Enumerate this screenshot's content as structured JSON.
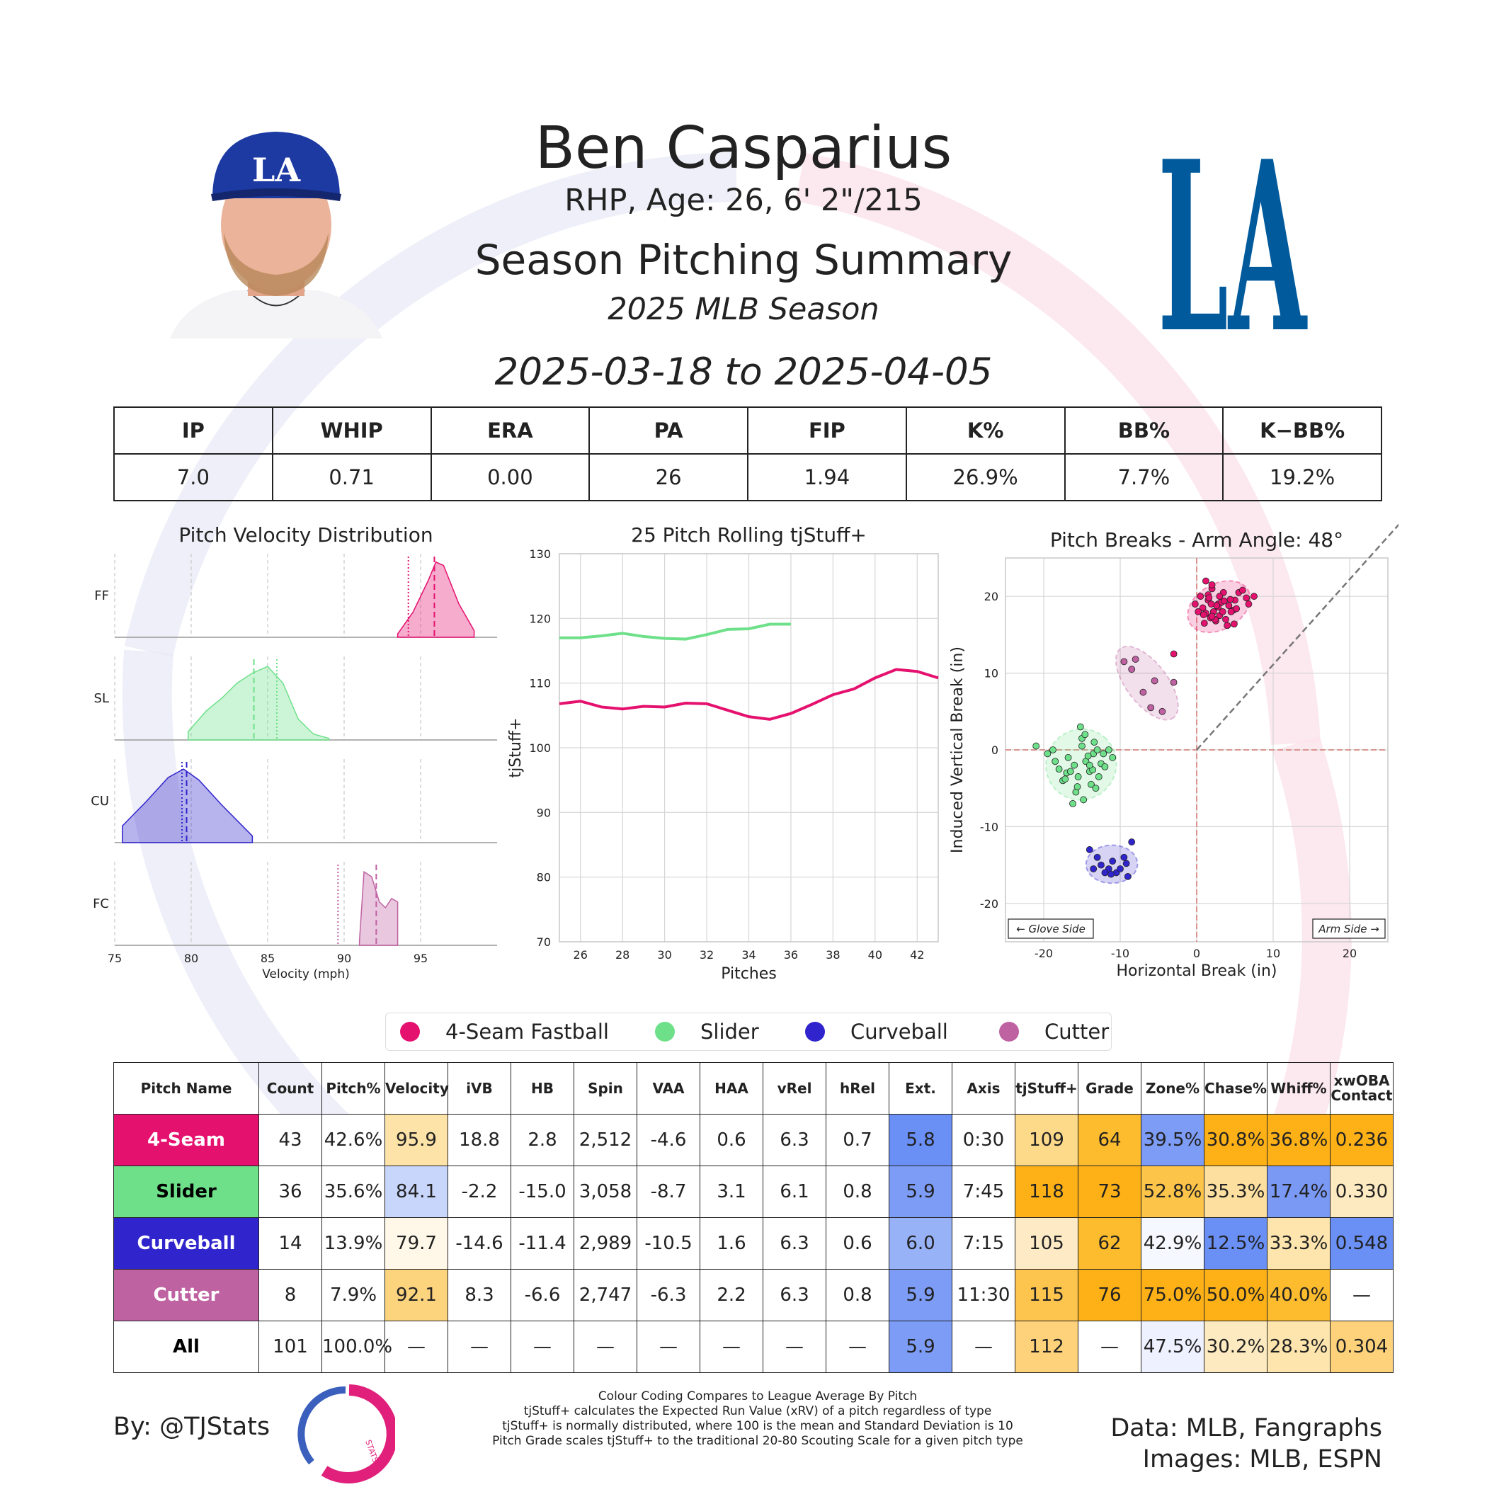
{
  "header": {
    "player_name": "Ben Casparius",
    "bio": "RHP, Age: 26, 6' 2\"/215",
    "summary_title": "Season Pitching Summary",
    "season": "2025 MLB Season",
    "date_range": "2025-03-18 to 2025-04-05",
    "team_logo_text": "LA",
    "headshot_icon": "player-headshot",
    "team_colors": {
      "primary": "#005A9C",
      "cap_logo": "#ffffff"
    }
  },
  "stats": {
    "headers": [
      "IP",
      "WHIP",
      "ERA",
      "PA",
      "FIP",
      "K%",
      "BB%",
      "K−BB%"
    ],
    "values": [
      "7.0",
      "0.71",
      "0.00",
      "26",
      "1.94",
      "26.9%",
      "7.7%",
      "19.2%"
    ]
  },
  "pitch_colors": {
    "FF": "#e5116f",
    "SL": "#6ee08a",
    "CU": "#3025cc",
    "FC": "#bf62a2"
  },
  "chart_data": [
    {
      "type": "area",
      "title": "Pitch Velocity Distribution",
      "xlabel": "Velocity (mph)",
      "ylabel": "",
      "xlim": [
        75,
        100
      ],
      "xticks": [
        75,
        80,
        85,
        90,
        95
      ],
      "series": [
        {
          "name": "FF",
          "x": [
            93.5,
            94.5,
            95.5,
            96.0,
            96.5,
            97.5,
            98.5
          ],
          "density": [
            0.04,
            0.3,
            0.68,
            0.9,
            0.86,
            0.4,
            0.08
          ],
          "mean": 95.9,
          "league_mean": 94.2
        },
        {
          "name": "SL",
          "x": [
            79.8,
            81.0,
            82.0,
            83.0,
            84.0,
            85.0,
            86.0,
            87.0,
            88.0,
            89.0
          ],
          "density": [
            0.1,
            0.35,
            0.5,
            0.68,
            0.8,
            0.88,
            0.68,
            0.25,
            0.07,
            0.02
          ],
          "mean": 84.1,
          "league_mean": 85.6
        },
        {
          "name": "CU",
          "x": [
            75.5,
            77.0,
            78.5,
            79.5,
            80.5,
            82.0,
            84.0
          ],
          "density": [
            0.2,
            0.48,
            0.78,
            0.88,
            0.75,
            0.45,
            0.08
          ],
          "mean": 79.7,
          "league_mean": 79.4
        },
        {
          "name": "FC",
          "x": [
            91.0,
            91.3,
            91.8,
            92.3,
            92.7,
            93.1,
            93.5
          ],
          "density": [
            0.05,
            0.88,
            0.82,
            0.52,
            0.45,
            0.56,
            0.52
          ],
          "mean": 92.1,
          "league_mean": 89.6
        }
      ]
    },
    {
      "type": "line",
      "title": "25 Pitch Rolling tjStuff+",
      "xlabel": "Pitches",
      "ylabel": "tjStuff+",
      "xlim": [
        25,
        43
      ],
      "ylim": [
        70,
        130
      ],
      "xticks": [
        26,
        28,
        30,
        32,
        34,
        36,
        38,
        40,
        42
      ],
      "yticks": [
        70,
        80,
        90,
        100,
        110,
        120,
        130
      ],
      "series": [
        {
          "name": "FF",
          "x": [
            25,
            26,
            27,
            28,
            29,
            30,
            31,
            32,
            33,
            34,
            35,
            36,
            37,
            38,
            39,
            40,
            41,
            42,
            43
          ],
          "y": [
            106.8,
            107.2,
            106.3,
            106.0,
            106.4,
            106.3,
            106.9,
            106.8,
            105.8,
            104.8,
            104.4,
            105.3,
            106.7,
            108.2,
            109.1,
            110.8,
            112.1,
            111.8,
            110.8
          ]
        },
        {
          "name": "SL",
          "x": [
            25,
            26,
            27,
            28,
            29,
            30,
            31,
            32,
            33,
            34,
            35,
            36
          ],
          "y": [
            117.0,
            117.0,
            117.3,
            117.7,
            117.2,
            116.9,
            116.8,
            117.5,
            118.3,
            118.4,
            119.1,
            119.1
          ]
        }
      ]
    },
    {
      "type": "scatter",
      "title": "Pitch Breaks - Arm Angle: 48°",
      "xlabel": "Horizontal Break (in)",
      "ylabel": "Induced Vertical Break (in)",
      "xlim": [
        -25,
        25
      ],
      "ylim": [
        -25,
        25
      ],
      "xticks": [
        -20,
        -10,
        0,
        10,
        20
      ],
      "yticks": [
        -20,
        -10,
        0,
        10,
        20
      ],
      "arm_angle_deg": 48,
      "glove_side_label": "← Glove Side",
      "arm_side_label": "Arm Side →",
      "series": [
        {
          "name": "FF",
          "x": [
            1.2,
            2.0,
            3.5,
            1.5,
            2.8,
            4.2,
            0.8,
            2.2,
            3.0,
            1.8,
            5.5,
            6.5,
            4.8,
            3.8,
            2.5,
            1.0,
            0.5,
            3.2,
            4.5,
            2.0,
            1.5,
            5.0,
            6.0,
            7.5,
            2.8,
            3.6,
            1.2,
            4.0,
            2.4,
            0.2,
            -0.2,
            3.0,
            2.0,
            5.2,
            1.6,
            4.4,
            -3.0,
            2.6,
            3.4,
            1.9,
            0.9,
            6.8,
            4.9
          ],
          "y": [
            22.0,
            21.0,
            20.5,
            19.5,
            19.0,
            18.8,
            18.5,
            18.0,
            17.5,
            17.2,
            20.5,
            19.8,
            18.2,
            17.0,
            16.8,
            16.5,
            20.0,
            19.2,
            18.0,
            21.5,
            20.2,
            19.5,
            20.8,
            20.0,
            18.6,
            19.4,
            17.8,
            16.2,
            17.0,
            18.0,
            19.0,
            20.0,
            17.4,
            18.4,
            19.8,
            19.6,
            12.5,
            18.8,
            18.0,
            19.0,
            17.6,
            19.0,
            16.4
          ]
        },
        {
          "name": "SL",
          "x": [
            -21.0,
            -19.5,
            -18.5,
            -18.0,
            -17.5,
            -17.0,
            -16.8,
            -16.0,
            -15.5,
            -15.2,
            -15.0,
            -14.5,
            -14.0,
            -13.8,
            -13.5,
            -13.0,
            -12.5,
            -12.0,
            -11.5,
            -11.0,
            -18.8,
            -16.5,
            -15.8,
            -14.8,
            -13.2,
            -12.8,
            -16.2,
            -15.0,
            -14.2,
            -13.6,
            -17.2,
            -14.6,
            -13.4,
            -12.2,
            -15.6,
            -14.0
          ],
          "y": [
            0.5,
            -0.5,
            -1.5,
            -2.5,
            -4.0,
            -3.0,
            -1.0,
            -2.0,
            -3.5,
            3.0,
            1.5,
            -1.5,
            -2.8,
            -4.5,
            -0.5,
            0.0,
            -1.8,
            -2.2,
            0.0,
            -1.0,
            0.0,
            -2.8,
            -5.5,
            -6.5,
            -5.0,
            -3.5,
            -7.0,
            0.5,
            -0.8,
            -2.6,
            -3.8,
            2.0,
            1.0,
            -0.5,
            -4.8,
            -2.0
          ]
        },
        {
          "name": "CU",
          "x": [
            -14.0,
            -13.0,
            -12.5,
            -11.5,
            -11.0,
            -10.5,
            -10.0,
            -9.5,
            -9.0,
            -8.5,
            -12.0,
            -13.5,
            -9.2,
            -11.2
          ],
          "y": [
            -13.0,
            -14.0,
            -15.0,
            -15.5,
            -14.5,
            -16.0,
            -15.5,
            -14.0,
            -16.5,
            -12.0,
            -16.0,
            -15.5,
            -14.8,
            -16.2
          ]
        },
        {
          "name": "FC",
          "x": [
            -9.5,
            -8.0,
            -7.0,
            -6.0,
            -5.5,
            -4.5,
            -3.0,
            -8.5
          ],
          "y": [
            11.5,
            11.8,
            7.5,
            5.5,
            9.0,
            5.0,
            8.8,
            10.5
          ]
        }
      ]
    }
  ],
  "legend": [
    {
      "code": "FF",
      "label": "4-Seam Fastball"
    },
    {
      "code": "SL",
      "label": "Slider"
    },
    {
      "code": "CU",
      "label": "Curveball"
    },
    {
      "code": "FC",
      "label": "Cutter"
    }
  ],
  "pitch_table": {
    "headers": [
      "Pitch Name",
      "Count",
      "Pitch%",
      "Velocity",
      "iVB",
      "HB",
      "Spin",
      "VAA",
      "HAA",
      "vRel",
      "hRel",
      "Ext.",
      "Axis",
      "tjStuff+",
      "Grade",
      "Zone%",
      "Chase%",
      "Whiff%",
      "xwOBA\nContact"
    ],
    "rows": [
      {
        "name": "4-Seam",
        "name_bg": "#e5116f",
        "name_color": "#ffffff",
        "cells": [
          "43",
          "42.6%",
          "95.9",
          "18.8",
          "2.8",
          "2,512",
          "-4.6",
          "0.6",
          "6.3",
          "0.7",
          "5.8",
          "0:30",
          "109",
          "64",
          "39.5%",
          "30.8%",
          "36.8%",
          "0.236"
        ],
        "bgs": [
          "#fff",
          "#fff",
          "#fde3a8",
          "#fff",
          "#fff",
          "#fff",
          "#fff",
          "#fff",
          "#fff",
          "#fff",
          "#6a8ff5",
          "#fff",
          "#fdd98a",
          "#fdbb2e",
          "#7d9cf5",
          "#fdb117",
          "#fdb117",
          "#fdb117"
        ]
      },
      {
        "name": "Slider",
        "name_bg": "#6ee08a",
        "name_color": "#000000",
        "cells": [
          "36",
          "35.6%",
          "84.1",
          "-2.2",
          "-15.0",
          "3,058",
          "-8.7",
          "3.1",
          "6.1",
          "0.8",
          "5.9",
          "7:45",
          "118",
          "73",
          "52.8%",
          "35.3%",
          "17.4%",
          "0.330"
        ],
        "bgs": [
          "#fff",
          "#fff",
          "#c9d6fb",
          "#fff",
          "#fff",
          "#fff",
          "#fff",
          "#fff",
          "#fff",
          "#fff",
          "#7d9cf5",
          "#fff",
          "#fdb117",
          "#fdb117",
          "#fdc44a",
          "#fde0a0",
          "#7a99f5",
          "#feeac0"
        ]
      },
      {
        "name": "Curveball",
        "name_bg": "#3025cc",
        "name_color": "#ffffff",
        "cells": [
          "14",
          "13.9%",
          "79.7",
          "-14.6",
          "-11.4",
          "2,989",
          "-10.5",
          "1.6",
          "6.3",
          "0.6",
          "6.0",
          "7:15",
          "105",
          "62",
          "42.9%",
          "12.5%",
          "33.3%",
          "0.548"
        ],
        "bgs": [
          "#fff",
          "#fff",
          "#fff8e8",
          "#fff",
          "#fff",
          "#fff",
          "#fff",
          "#fff",
          "#fff",
          "#fff",
          "#98b2f8",
          "#fff",
          "#feebc5",
          "#fdbb2e",
          "#f6f8ff",
          "#6a8ff5",
          "#fde5ad",
          "#6a8ff5"
        ]
      },
      {
        "name": "Cutter",
        "name_bg": "#bf62a2",
        "name_color": "#ffffff",
        "cells": [
          "8",
          "7.9%",
          "92.1",
          "8.3",
          "-6.6",
          "2,747",
          "-6.3",
          "2.2",
          "6.3",
          "0.8",
          "5.9",
          "11:30",
          "115",
          "76",
          "75.0%",
          "50.0%",
          "40.0%",
          "—"
        ],
        "bgs": [
          "#fff",
          "#fff",
          "#fdd47e",
          "#fff",
          "#fff",
          "#fff",
          "#fff",
          "#fff",
          "#fff",
          "#fff",
          "#7d9cf5",
          "#fff",
          "#fdc54e",
          "#fdb117",
          "#fdb117",
          "#fdb117",
          "#fdbb2e",
          "#fff"
        ]
      },
      {
        "name": "All",
        "name_bg": "#ffffff",
        "name_color": "#000000",
        "cells": [
          "101",
          "100.0%",
          "—",
          "—",
          "—",
          "—",
          "—",
          "—",
          "—",
          "—",
          "5.9",
          "—",
          "112",
          "—",
          "47.5%",
          "30.2%",
          "28.3%",
          "0.304"
        ],
        "bgs": [
          "#fff",
          "#fff",
          "#fff",
          "#fff",
          "#fff",
          "#fff",
          "#fff",
          "#fff",
          "#fff",
          "#fff",
          "#7d9cf5",
          "#fff",
          "#fdd27a",
          "#fff",
          "#eef1ff",
          "#feeac0",
          "#fde5ad",
          "#fdd27a"
        ]
      }
    ]
  },
  "footer": {
    "byline": "By: @TJStats",
    "logo_text": "STATS",
    "notes": [
      "Colour Coding Compares to League Average By Pitch",
      "tjStuff+ calculates the Expected Run Value (xRV) of a pitch regardless of type",
      "tjStuff+ is normally distributed, where 100 is the mean and Standard Deviation is 10",
      "Pitch Grade scales tjStuff+ to the traditional 20-80 Scouting Scale for a given pitch type"
    ],
    "credits_line1": "Data: MLB, Fangraphs",
    "credits_line2": "Images: MLB, ESPN"
  }
}
